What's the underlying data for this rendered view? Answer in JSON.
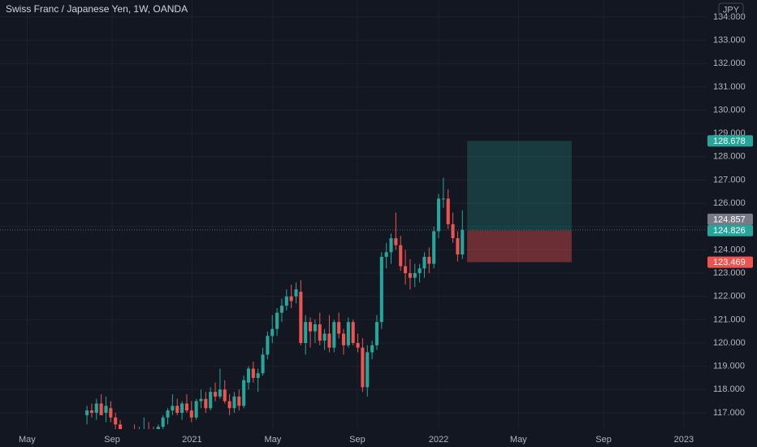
{
  "chart_data": {
    "type": "candlestick",
    "title": "Swiss Franc / Japanese Yen, 1W, OANDA",
    "currency": "JPY",
    "up_color": "#26a69a",
    "down_color": "#ef5350",
    "candles": [
      [
        116.9,
        117.3,
        116.5,
        117.1
      ],
      [
        117.1,
        117.4,
        116.8,
        117.0
      ],
      [
        117.0,
        117.6,
        116.7,
        117.4
      ],
      [
        117.4,
        117.8,
        116.9,
        116.9
      ],
      [
        117.0,
        117.7,
        116.6,
        117.3
      ],
      [
        117.2,
        117.5,
        116.6,
        116.8
      ],
      [
        116.8,
        117.0,
        116.3,
        116.5
      ],
      [
        116.5,
        116.7,
        115.9,
        116.0
      ],
      [
        116.0,
        116.3,
        115.6,
        115.8
      ],
      [
        115.8,
        116.2,
        115.5,
        116.1
      ],
      [
        116.1,
        116.5,
        115.7,
        115.9
      ],
      [
        115.9,
        116.4,
        115.6,
        116.2
      ],
      [
        115.9,
        116.8,
        115.8,
        116.3
      ],
      [
        116.3,
        116.6,
        115.9,
        116.1
      ],
      [
        116.1,
        116.4,
        115.8,
        116.0
      ],
      [
        116.0,
        116.5,
        115.7,
        116.4
      ],
      [
        116.4,
        116.9,
        116.2,
        116.8
      ],
      [
        116.8,
        117.2,
        116.5,
        117.1
      ],
      [
        117.1,
        117.8,
        116.9,
        117.3
      ],
      [
        117.3,
        117.6,
        116.9,
        117.0
      ],
      [
        117.0,
        117.5,
        116.7,
        117.4
      ],
      [
        117.4,
        117.8,
        117.0,
        117.1
      ],
      [
        117.1,
        117.5,
        116.6,
        116.8
      ],
      [
        116.8,
        117.6,
        116.7,
        117.5
      ],
      [
        117.5,
        118.0,
        117.2,
        117.6
      ],
      [
        117.6,
        117.9,
        117.0,
        117.2
      ],
      [
        117.2,
        118.1,
        117.1,
        117.9
      ],
      [
        117.9,
        118.3,
        117.5,
        117.7
      ],
      [
        117.7,
        118.9,
        117.6,
        118.0
      ],
      [
        118.0,
        118.4,
        117.4,
        117.5
      ],
      [
        117.5,
        117.8,
        116.9,
        117.2
      ],
      [
        117.2,
        117.9,
        117.0,
        117.7
      ],
      [
        117.7,
        118.0,
        117.1,
        117.3
      ],
      [
        117.3,
        118.6,
        117.2,
        118.4
      ],
      [
        118.3,
        119.0,
        118.0,
        118.9
      ],
      [
        118.9,
        119.2,
        118.3,
        118.5
      ],
      [
        118.5,
        118.9,
        117.9,
        118.7
      ],
      [
        118.7,
        119.8,
        118.6,
        119.5
      ],
      [
        119.5,
        120.5,
        119.3,
        120.3
      ],
      [
        120.3,
        121.2,
        120.0,
        120.6
      ],
      [
        120.6,
        121.5,
        120.3,
        121.3
      ],
      [
        121.3,
        121.9,
        120.9,
        121.6
      ],
      [
        121.6,
        122.3,
        121.4,
        122.0
      ],
      [
        122.0,
        122.5,
        121.5,
        121.8
      ],
      [
        122.0,
        122.6,
        121.7,
        122.3
      ],
      [
        122.2,
        122.7,
        119.9,
        120.0
      ],
      [
        120.0,
        121.2,
        119.5,
        120.9
      ],
      [
        120.9,
        121.1,
        119.8,
        120.5
      ],
      [
        120.5,
        121.0,
        120.0,
        120.8
      ],
      [
        120.8,
        121.3,
        119.9,
        120.1
      ],
      [
        120.1,
        120.6,
        119.7,
        120.4
      ],
      [
        120.4,
        121.2,
        119.6,
        119.8
      ],
      [
        119.8,
        121.0,
        119.6,
        120.9
      ],
      [
        120.9,
        121.3,
        120.2,
        120.4
      ],
      [
        120.4,
        120.6,
        119.5,
        119.9
      ],
      [
        119.9,
        121.1,
        119.8,
        120.9
      ],
      [
        120.9,
        121.0,
        119.9,
        120.0
      ],
      [
        120.0,
        120.4,
        119.6,
        119.8
      ],
      [
        119.8,
        120.2,
        117.9,
        118.1
      ],
      [
        118.1,
        119.9,
        117.7,
        119.6
      ],
      [
        119.6,
        120.1,
        119.3,
        119.9
      ],
      [
        119.9,
        121.2,
        119.7,
        120.9
      ],
      [
        120.9,
        123.9,
        120.6,
        123.7
      ],
      [
        123.7,
        124.3,
        123.2,
        123.9
      ],
      [
        123.9,
        124.7,
        123.4,
        124.5
      ],
      [
        124.5,
        125.6,
        124.0,
        124.2
      ],
      [
        124.2,
        124.6,
        123.1,
        123.3
      ],
      [
        123.3,
        124.0,
        122.5,
        123.0
      ],
      [
        123.0,
        123.6,
        122.3,
        122.8
      ],
      [
        122.8,
        123.4,
        122.4,
        123.0
      ],
      [
        123.0,
        123.4,
        122.6,
        123.2
      ],
      [
        123.2,
        123.9,
        122.8,
        123.7
      ],
      [
        123.7,
        124.1,
        123.0,
        123.4
      ],
      [
        123.4,
        125.0,
        123.2,
        124.8
      ],
      [
        124.8,
        126.4,
        124.5,
        126.2
      ],
      [
        126.2,
        127.1,
        125.8,
        126.2
      ],
      [
        126.2,
        126.6,
        124.9,
        125.1
      ],
      [
        125.1,
        125.6,
        124.3,
        124.5
      ],
      [
        124.5,
        124.8,
        123.5,
        123.8
      ],
      [
        123.8,
        125.7,
        123.6,
        124.857
      ]
    ],
    "xlim": [
      -18.3,
      130.4
    ],
    "xticks": [
      {
        "value": -12.6,
        "label": "May"
      },
      {
        "value": 5.3,
        "label": "Sep"
      },
      {
        "value": 22.1,
        "label": "2021"
      },
      {
        "value": 39.1,
        "label": "May"
      },
      {
        "value": 56.9,
        "label": "Sep"
      },
      {
        "value": 74.0,
        "label": "2022"
      },
      {
        "value": 90.8,
        "label": "May"
      },
      {
        "value": 108.7,
        "label": "Sep"
      },
      {
        "value": 125.6,
        "label": "2023"
      }
    ],
    "ylim": [
      116.3,
      134.73
    ],
    "yticks": [
      {
        "value": 117,
        "label": "117.000"
      },
      {
        "value": 118,
        "label": "118.000"
      },
      {
        "value": 119,
        "label": "119.000"
      },
      {
        "value": 120,
        "label": "120.000"
      },
      {
        "value": 121,
        "label": "121.000"
      },
      {
        "value": 122,
        "label": "122.000"
      },
      {
        "value": 123,
        "label": "123.000"
      },
      {
        "value": 124,
        "label": "124.000"
      },
      {
        "value": 125,
        "label": "125.000"
      },
      {
        "value": 126,
        "label": "126.000"
      },
      {
        "value": 127,
        "label": "127.000"
      },
      {
        "value": 128,
        "label": "128.000"
      },
      {
        "value": 129,
        "label": "129.000"
      },
      {
        "value": 130,
        "label": "130.000"
      },
      {
        "value": 131,
        "label": "131.000"
      },
      {
        "value": 132,
        "label": "132.000"
      },
      {
        "value": 133,
        "label": "133.000"
      },
      {
        "value": 134,
        "label": "134.000"
      }
    ],
    "last_price": 124.857,
    "position": {
      "start": 80,
      "end": 102,
      "entry": 124.826,
      "target": 128.678,
      "stop": 123.469
    }
  }
}
